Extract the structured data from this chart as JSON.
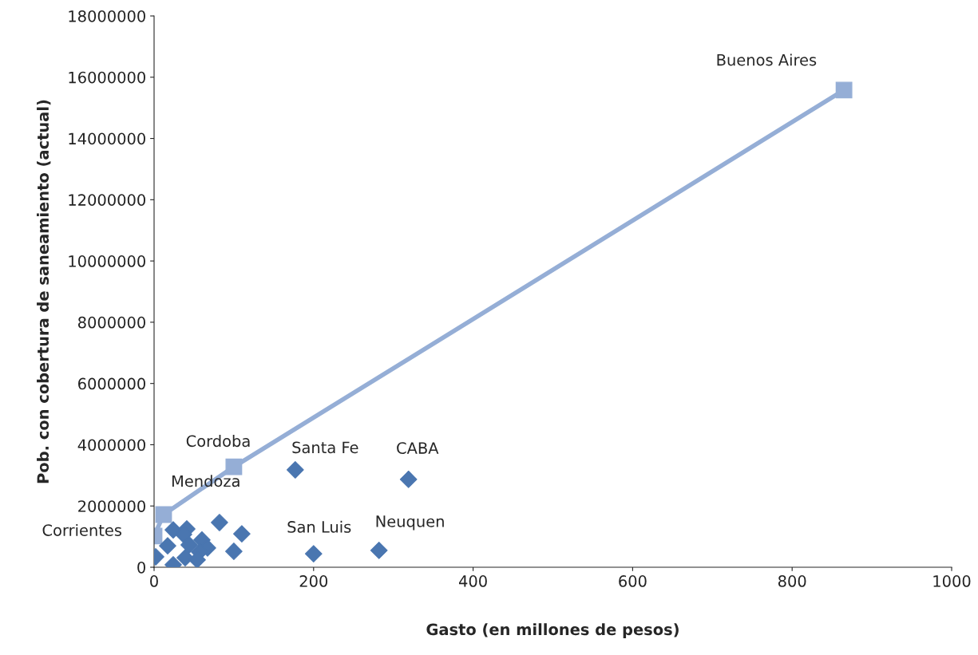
{
  "chart_data": {
    "type": "scatter",
    "xlabel": "Gasto (en millones de pesos)",
    "ylabel": "Pob. con cobertura de saneamiento (actual)",
    "xlim": [
      0,
      1000
    ],
    "xticks": [
      0,
      200,
      400,
      600,
      800,
      1000
    ],
    "ylim": [
      0,
      18000000
    ],
    "yticks": [
      0,
      2000000,
      4000000,
      6000000,
      8000000,
      10000000,
      12000000,
      14000000,
      16000000,
      18000000
    ],
    "grid": false,
    "legend": false,
    "series": [
      {
        "marker": "diamond",
        "color": "#4a76b0",
        "x": [
          177,
          319,
          200,
          282,
          82,
          110,
          100,
          24,
          41,
          37,
          17,
          44,
          60,
          67,
          57,
          2,
          22,
          39,
          54,
          24
        ],
        "values": [
          3180000,
          2870000,
          440000,
          550000,
          1460000,
          1090000,
          520000,
          1220000,
          1250000,
          1070000,
          700000,
          730000,
          890000,
          630000,
          500000,
          340000,
          null,
          310000,
          240000,
          80000
        ]
      },
      {
        "type": "line",
        "marker": "square",
        "color": "#95aed6",
        "x": [
          0,
          12,
          100,
          865
        ],
        "values": [
          1020000,
          1720000,
          3280000,
          15580000
        ]
      }
    ],
    "annotations": [
      {
        "text": "Buenos Aires",
        "x": 865,
        "y": 15580000
      },
      {
        "text": "Cordoba",
        "x": 100,
        "y": 3280000
      },
      {
        "text": "Santa Fe",
        "x": 177,
        "y": 3180000
      },
      {
        "text": "CABA",
        "x": 319,
        "y": 2870000
      },
      {
        "text": "Mendoza",
        "x": 12,
        "y": 1720000
      },
      {
        "text": "Corrientes",
        "x": 0,
        "y": 1020000
      },
      {
        "text": "San Luis",
        "x": 200,
        "y": 440000
      },
      {
        "text": "Neuquen",
        "x": 282,
        "y": 550000
      }
    ]
  }
}
